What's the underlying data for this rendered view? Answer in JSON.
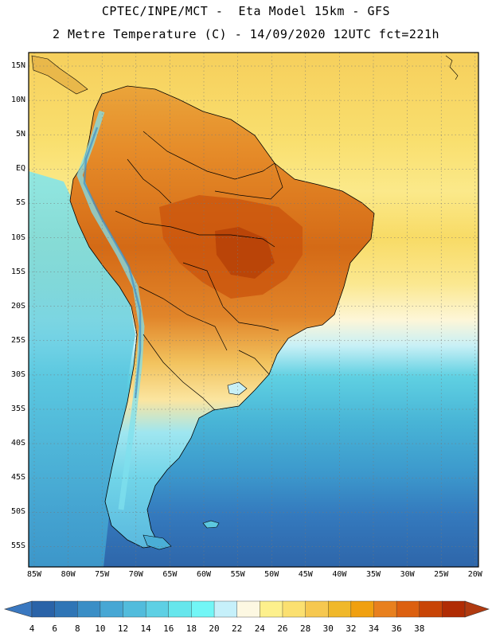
{
  "header": {
    "line1": "CPTEC/INPE/MCT -  Eta Model 15km - GFS",
    "line2": "2 Metre Temperature (C) - 14/09/2020 12UTC fct=221h"
  },
  "axes": {
    "lat_labels": [
      "15N",
      "10N",
      "5N",
      "EQ",
      "5S",
      "10S",
      "15S",
      "20S",
      "25S",
      "30S",
      "35S",
      "40S",
      "45S",
      "50S",
      "55S"
    ],
    "lon_labels": [
      "85W",
      "80W",
      "75W",
      "70W",
      "65W",
      "60W",
      "55W",
      "50W",
      "45W",
      "40W",
      "35W",
      "30W",
      "25W",
      "20W"
    ]
  },
  "colorbar": {
    "labels": [
      "4",
      "6",
      "8",
      "10",
      "12",
      "14",
      "16",
      "18",
      "20",
      "22",
      "24",
      "26",
      "28",
      "30",
      "32",
      "34",
      "36",
      "38"
    ],
    "colors": [
      "#2a63a8",
      "#2f75b6",
      "#3a8ec6",
      "#47a7d4",
      "#52bcdc",
      "#5ed0e4",
      "#66e6ec",
      "#72f6f6",
      "#c6f0fa",
      "#fdf8e2",
      "#fdf08c",
      "#fbe070",
      "#f6c850",
      "#f0b82a",
      "#f0a010",
      "#e8801e",
      "#dc6010",
      "#c84406",
      "#b02c04"
    ],
    "below_color": "#3a78c0",
    "above_color": "#b03a10"
  }
}
